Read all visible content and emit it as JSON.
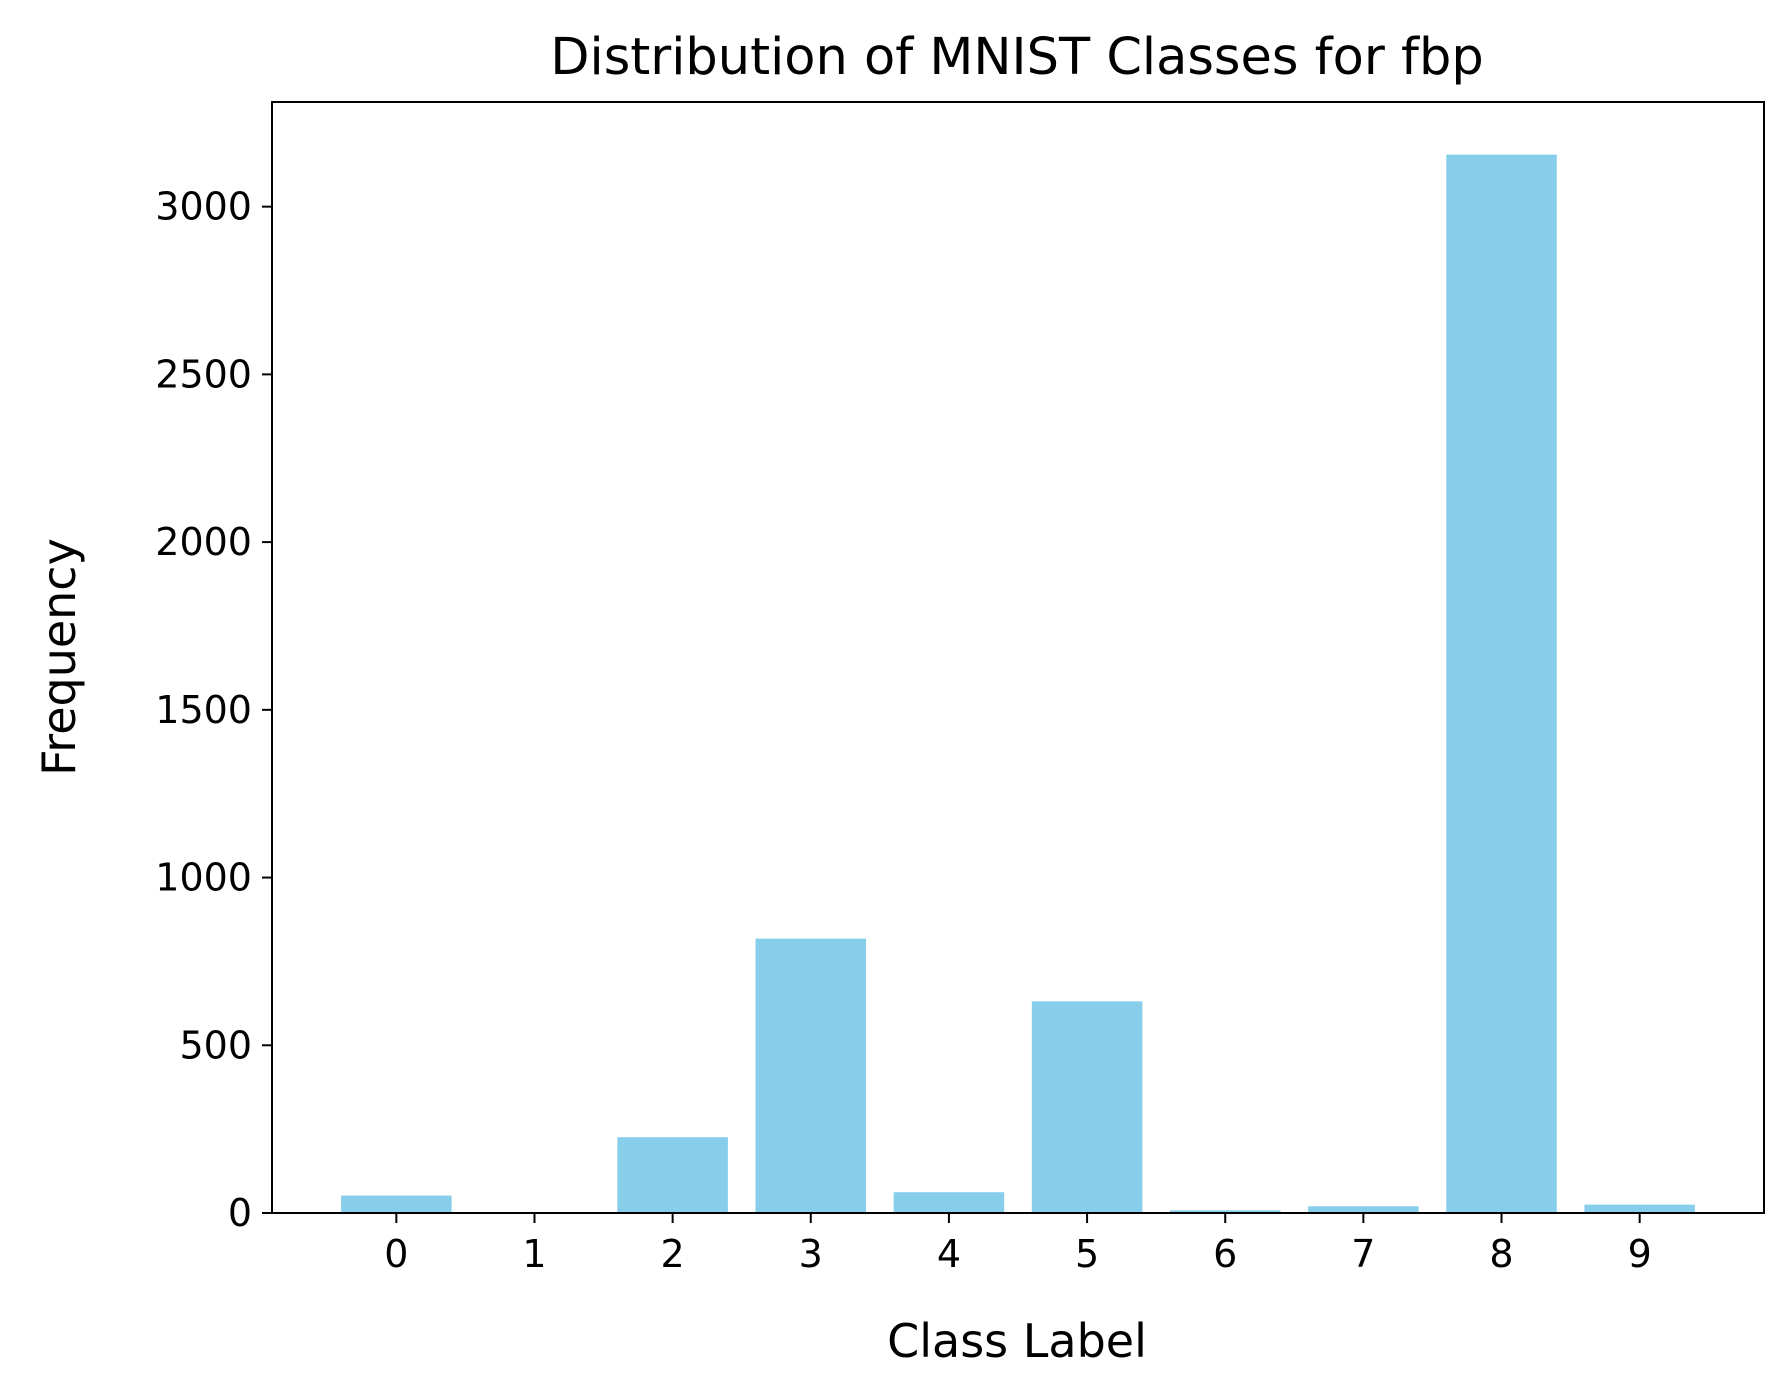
{
  "chart_data": {
    "type": "bar",
    "title": "Distribution of MNIST Classes for fbp",
    "xlabel": "Class Label",
    "ylabel": "Frequency",
    "categories": [
      "0",
      "1",
      "2",
      "3",
      "4",
      "5",
      "6",
      "7",
      "8",
      "9"
    ],
    "values": [
      52,
      2,
      226,
      818,
      62,
      631,
      8,
      20,
      3155,
      25
    ],
    "ylim": [
      0,
      3312
    ],
    "yticks": [
      0,
      500,
      1000,
      1500,
      2000,
      2500,
      3000
    ],
    "ytick_labels": [
      "0",
      "500",
      "1000",
      "1500",
      "2000",
      "2500",
      "3000"
    ],
    "bar_color": "#87CEEB",
    "grid": false,
    "legend": "none"
  }
}
